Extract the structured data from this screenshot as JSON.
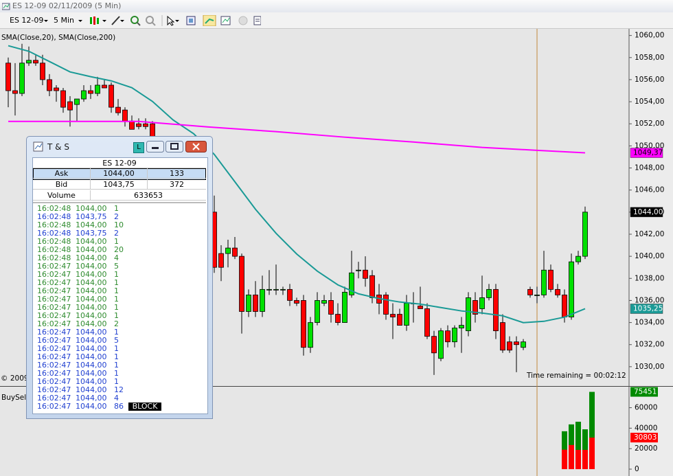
{
  "window": {
    "title": "ES 12-09  02/11/2009 (5 Min)"
  },
  "toolbar": {
    "instrument": "ES 12-09",
    "interval": "5 Min"
  },
  "chart_data": [
    {
      "type": "candlestick",
      "legend": "SMA(Close,20), SMA(Close,200)",
      "annotation": "Time remaining = 00:02:12",
      "copyright": "© 2009",
      "up_color": "#00e000",
      "down_color": "#ff0000",
      "open": [
        1057.5,
        1055,
        1054.75,
        1057.5,
        1057.75,
        1057.5,
        1056,
        1055.25,
        1055,
        1054,
        1053.75,
        1054.25,
        1055,
        1054.75,
        1055.5,
        1055.5,
        1053.5,
        1053.25,
        1052.25,
        1052,
        1052,
        1052,
        null,
        null,
        null,
        null,
        null,
        null,
        null,
        null,
        1044,
        1040.25,
        1040.25,
        1040.75,
        1040,
        1035,
        1036.5,
        1035,
        1037,
        1037,
        1037,
        1037,
        1036,
        1036,
        1031.75,
        1034,
        1035.75,
        1036,
        1034.75,
        1034,
        1036.5,
        1038.75,
        1038.75,
        1038.25,
        1036.5,
        1036.5,
        1034.75,
        1034.75,
        1033.75,
        1035.75,
        1035.5,
        1035.25,
        1032.75,
        1030.75,
        1033.25,
        1032.25,
        1033.5,
        1033.25,
        1036,
        1035.25,
        1036.25,
        1037,
        1034,
        1032.25,
        1032.25,
        1031.75,
        1037,
        1036.5,
        1036.5,
        1038.75,
        1037,
        1036.5,
        1034.5,
        1039.5,
        1040
      ],
      "high": [
        1058,
        1057.5,
        1059.25,
        1059,
        1058.25,
        1058.25,
        1056.5,
        1055.5,
        1055.25,
        1054.5,
        1054.25,
        1055.5,
        1055.5,
        1056.25,
        1056,
        1055.75,
        1054.25,
        1053.5,
        1052.75,
        1052.5,
        1052.5,
        1052.25,
        null,
        null,
        null,
        null,
        null,
        null,
        null,
        null,
        1045.5,
        1041,
        1041.5,
        1041.75,
        1040.25,
        1037,
        1037.75,
        1038.25,
        1038.75,
        1039.25,
        1037.25,
        1037.5,
        1036.25,
        1036.5,
        1034.5,
        1036.75,
        1036.5,
        1036.75,
        1035.75,
        1037.25,
        1040.5,
        1039.5,
        1040,
        1038.75,
        1037.5,
        1036.75,
        1035.75,
        1035.25,
        1036.5,
        1036.75,
        1037.25,
        1035.75,
        1033.25,
        1033.5,
        1033.75,
        1033.75,
        1034.5,
        1036.75,
        1036.75,
        1038.25,
        1037.5,
        1037.5,
        1034.75,
        1032.75,
        1032.75,
        1032.5,
        1037.25,
        1037.25,
        1040.5,
        1039.25,
        1037.5,
        1037,
        1040.25,
        1040.5,
        1044.5
      ],
      "low": [
        1053.5,
        1052.75,
        1054.5,
        1057.25,
        1057.25,
        1055.5,
        1054.5,
        1054,
        1053,
        1051.75,
        1052.25,
        1054,
        1054.25,
        1054.5,
        1055.25,
        1053,
        1052.75,
        1051.75,
        1051.5,
        1051.5,
        1051.5,
        1049.5,
        null,
        null,
        null,
        null,
        null,
        null,
        null,
        null,
        1038.5,
        1037.75,
        1039,
        1039.75,
        1033,
        1034.5,
        1034.5,
        1034.5,
        1036.5,
        1036.5,
        1036.5,
        1035.5,
        1035.5,
        1031,
        1031.25,
        1033.75,
        1035.5,
        1034,
        1033.75,
        1034,
        1036.25,
        1038,
        1037.25,
        1035.75,
        1034.75,
        1034.25,
        1032.5,
        1033.75,
        1033.25,
        1034,
        1035.25,
        1032.5,
        1029.25,
        1030.5,
        1031.75,
        1031.75,
        1031.25,
        1032.75,
        1034,
        1034.75,
        1036,
        1032.5,
        1031.25,
        1031.25,
        1029.5,
        1031.5,
        1036.25,
        1035.75,
        1036.25,
        1036.75,
        1036.25,
        1034,
        1034.25,
        1039.25,
        1039.75
      ],
      "close": [
        1055,
        1054.75,
        1057.5,
        1057.75,
        1057.5,
        1056,
        1055,
        1055,
        1053.5,
        1053.25,
        1054.25,
        1055,
        1054.75,
        1055.5,
        1055.25,
        1053.5,
        1053,
        1052.25,
        1051.5,
        1051.75,
        1051.75,
        1050,
        null,
        null,
        null,
        null,
        null,
        null,
        null,
        null,
        1039,
        1039,
        1040.75,
        1040,
        1035,
        1036.5,
        1035,
        1037,
        1037,
        1037,
        1037,
        1036,
        1035.75,
        1031.75,
        1034,
        1036,
        1036,
        1034.75,
        1034,
        1036.75,
        1038.5,
        1038.75,
        1038,
        1036.25,
        1035.75,
        1034.75,
        1034.5,
        1033.75,
        1035.75,
        1035.75,
        1035.25,
        1032.75,
        1031.25,
        1033.25,
        1032.25,
        1033.5,
        1033.75,
        1036.25,
        1034.75,
        1036.25,
        1037,
        1033.25,
        1031.5,
        1031.5,
        1032,
        1032.25,
        1036.5,
        1036.5,
        1038.75,
        1037,
        1036.5,
        1034.5,
        1039.5,
        1040,
        1044
      ],
      "last_close_label": "1044,00",
      "lines": [
        {
          "color": "#1a9a96",
          "x": [
            0,
            3,
            6,
            9,
            12,
            15,
            18,
            21,
            24,
            27,
            30,
            33,
            36,
            39,
            42,
            45,
            48,
            51,
            54,
            57,
            60,
            63,
            66,
            69,
            72,
            75,
            78,
            81,
            84
          ],
          "values": [
            1059.07,
            1058.57,
            1057.64,
            1056.7,
            1056.27,
            1055.89,
            1055.27,
            1054.03,
            1052.35,
            1051.1,
            1049.23,
            1046.75,
            1044.26,
            1042.08,
            1040.21,
            1038.66,
            1037.41,
            1036.6,
            1036.17,
            1035.86,
            1035.67,
            1035.36,
            1035.05,
            1034.86,
            1034.61,
            1033.99,
            1034.11,
            1034.49,
            1035.25
          ],
          "last_label": "1035,25"
        },
        {
          "color": "#ff00ff",
          "x": [
            0,
            9,
            19,
            29,
            39,
            49,
            59,
            69,
            77,
            84
          ],
          "values": [
            1052.22,
            1052.22,
            1052.22,
            1051.72,
            1051.29,
            1050.79,
            1050.35,
            1049.86,
            1049.6,
            1049.37
          ],
          "last_label": "1049,37"
        }
      ],
      "ylim": [
        1028.25,
        1060.6
      ],
      "yticks": [
        {
          "value": 1060,
          "label": "1060,00"
        },
        {
          "value": 1058,
          "label": "1058,00"
        },
        {
          "value": 1056,
          "label": "1056,00"
        },
        {
          "value": 1054,
          "label": "1054,00"
        },
        {
          "value": 1052,
          "label": "1052,00"
        },
        {
          "value": 1050,
          "label": "1050,00"
        },
        {
          "value": 1048,
          "label": "1048,00"
        },
        {
          "value": 1046,
          "label": "1046,00"
        },
        {
          "value": 1044,
          "label": "1044,00"
        },
        {
          "value": 1042,
          "label": "1042,00"
        },
        {
          "value": 1040,
          "label": "1040,00"
        },
        {
          "value": 1038,
          "label": "1038,00"
        },
        {
          "value": 1036,
          "label": "1036,00"
        },
        {
          "value": 1034,
          "label": "1034,00"
        },
        {
          "value": 1032,
          "label": "1032,00"
        },
        {
          "value": 1030,
          "label": "1030,00"
        }
      ]
    },
    {
      "type": "bar",
      "label": "BuySell",
      "x": [
        81,
        82,
        83,
        84,
        85
      ],
      "series": [
        {
          "color": "#008a00",
          "values": [
            37000,
            43700,
            46300,
            38900,
            75451
          ]
        },
        {
          "color": "#ff0000",
          "values": [
            19000,
            23600,
            18800,
            18800,
            30803
          ]
        }
      ],
      "ylim": [
        -6700,
        80500
      ],
      "yticks": [
        0,
        20000,
        40000,
        60000
      ]
    }
  ],
  "ts_window": {
    "title": "T & S",
    "link_button": "L",
    "instrument": "ES 12-09",
    "quote": [
      [
        "Ask",
        "1044,00",
        133
      ],
      [
        "Bid",
        "1043,75",
        372
      ],
      [
        "Volume",
        633653
      ]
    ],
    "rows": [
      [
        "16:02:48",
        "1044,00",
        1,
        "#2e8b2e"
      ],
      [
        "16:02:48",
        "1043,75",
        2,
        "#1f3fd0"
      ],
      [
        "16:02:48",
        "1044,00",
        10,
        "#2e8b2e"
      ],
      [
        "16:02:48",
        "1043,75",
        2,
        "#1f3fd0"
      ],
      [
        "16:02:48",
        "1044,00",
        1,
        "#2e8b2e"
      ],
      [
        "16:02:48",
        "1044,00",
        20,
        "#2e8b2e"
      ],
      [
        "16:02:48",
        "1044,00",
        4,
        "#2e8b2e"
      ],
      [
        "16:02:47",
        "1044,00",
        5,
        "#2e8b2e"
      ],
      [
        "16:02:47",
        "1044,00",
        1,
        "#2e8b2e"
      ],
      [
        "16:02:47",
        "1044,00",
        1,
        "#2e8b2e"
      ],
      [
        "16:02:47",
        "1044,00",
        1,
        "#2e8b2e"
      ],
      [
        "16:02:47",
        "1044,00",
        1,
        "#2e8b2e"
      ],
      [
        "16:02:47",
        "1044,00",
        1,
        "#2e8b2e"
      ],
      [
        "16:02:47",
        "1044,00",
        1,
        "#2e8b2e"
      ],
      [
        "16:02:47",
        "1044,00",
        2,
        "#2e8b2e"
      ],
      [
        "16:02:47",
        "1044,00",
        1,
        "#1f3fd0"
      ],
      [
        "16:02:47",
        "1044,00",
        5,
        "#1f3fd0"
      ],
      [
        "16:02:47",
        "1044,00",
        1,
        "#1f3fd0"
      ],
      [
        "16:02:47",
        "1044,00",
        1,
        "#1f3fd0"
      ],
      [
        "16:02:47",
        "1044,00",
        1,
        "#1f3fd0"
      ],
      [
        "16:02:47",
        "1044,00",
        1,
        "#1f3fd0"
      ],
      [
        "16:02:47",
        "1044,00",
        1,
        "#1f3fd0"
      ],
      [
        "16:02:47",
        "1044,00",
        12,
        "#1f3fd0"
      ],
      [
        "16:02:47",
        "1044,00",
        4,
        "#1f3fd0"
      ],
      [
        "16:02:47",
        "1044,00",
        86,
        "#1f3fd0",
        "BLOCK"
      ]
    ]
  }
}
